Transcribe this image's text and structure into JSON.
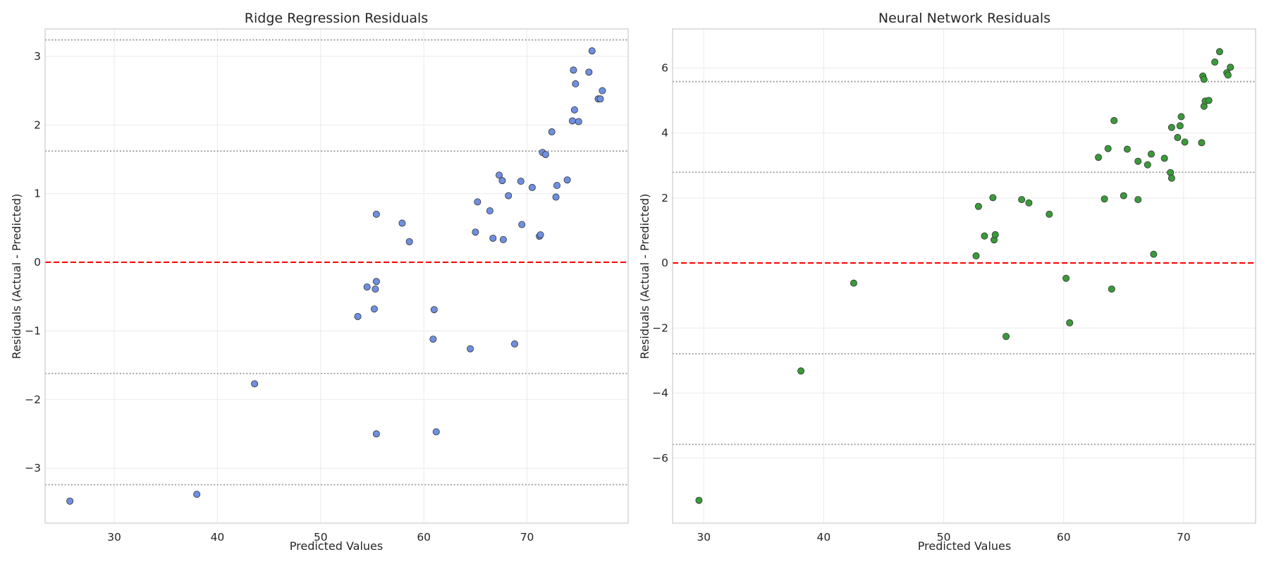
{
  "chart_data": [
    {
      "type": "scatter",
      "title": "Ridge Regression Residuals",
      "xlabel": "Predicted Values",
      "ylabel": "Residuals (Actual - Predicted)",
      "xlim": [
        23.3,
        79.8
      ],
      "ylim": [
        -3.8,
        3.4
      ],
      "xticks": [
        30,
        40,
        50,
        60,
        70
      ],
      "yticks": [
        -3,
        -2,
        -1,
        0,
        1,
        2,
        3
      ],
      "xtick_labels": [
        "30",
        "40",
        "50",
        "60",
        "70"
      ],
      "ytick_labels": [
        "−3",
        "−2",
        "−1",
        "0",
        "1",
        "2",
        "3"
      ],
      "grid": true,
      "point_color": "#6f8fe0",
      "zero_line": {
        "y": 0,
        "color": "#ff0000",
        "style": "dashed"
      },
      "reference_lines": [
        3.24,
        1.62,
        -1.62,
        -3.24
      ],
      "reference_line_color": "#999999",
      "points": [
        {
          "x": 25.7,
          "y": -3.48
        },
        {
          "x": 38.0,
          "y": -3.38
        },
        {
          "x": 43.6,
          "y": -1.77
        },
        {
          "x": 53.6,
          "y": -0.79
        },
        {
          "x": 54.5,
          "y": -0.36
        },
        {
          "x": 55.2,
          "y": -0.68
        },
        {
          "x": 55.3,
          "y": -0.39
        },
        {
          "x": 55.4,
          "y": 0.7
        },
        {
          "x": 55.4,
          "y": -0.28
        },
        {
          "x": 55.4,
          "y": -2.5
        },
        {
          "x": 57.9,
          "y": 0.57
        },
        {
          "x": 58.6,
          "y": 0.3
        },
        {
          "x": 60.9,
          "y": -1.12
        },
        {
          "x": 61.0,
          "y": -0.69
        },
        {
          "x": 61.2,
          "y": -2.47
        },
        {
          "x": 64.5,
          "y": -1.26
        },
        {
          "x": 65.0,
          "y": 0.44
        },
        {
          "x": 65.2,
          "y": 0.88
        },
        {
          "x": 66.4,
          "y": 0.75
        },
        {
          "x": 66.7,
          "y": 0.35
        },
        {
          "x": 67.3,
          "y": 1.27
        },
        {
          "x": 67.6,
          "y": 1.19
        },
        {
          "x": 67.7,
          "y": 0.33
        },
        {
          "x": 68.2,
          "y": 0.97
        },
        {
          "x": 68.8,
          "y": -1.19
        },
        {
          "x": 69.4,
          "y": 1.18
        },
        {
          "x": 69.5,
          "y": 0.55
        },
        {
          "x": 70.5,
          "y": 1.09
        },
        {
          "x": 71.2,
          "y": 0.38
        },
        {
          "x": 71.3,
          "y": 0.4
        },
        {
          "x": 71.5,
          "y": 1.6
        },
        {
          "x": 71.8,
          "y": 1.57
        },
        {
          "x": 72.4,
          "y": 1.9
        },
        {
          "x": 72.8,
          "y": 0.95
        },
        {
          "x": 72.9,
          "y": 1.12
        },
        {
          "x": 73.9,
          "y": 1.2
        },
        {
          "x": 74.4,
          "y": 2.06
        },
        {
          "x": 74.5,
          "y": 2.8
        },
        {
          "x": 74.6,
          "y": 2.22
        },
        {
          "x": 74.7,
          "y": 2.6
        },
        {
          "x": 75.0,
          "y": 2.05
        },
        {
          "x": 76.0,
          "y": 2.77
        },
        {
          "x": 76.3,
          "y": 3.08
        },
        {
          "x": 76.9,
          "y": 2.38
        },
        {
          "x": 77.1,
          "y": 2.38
        },
        {
          "x": 77.3,
          "y": 2.5
        }
      ]
    },
    {
      "type": "scatter",
      "title": "Neural Network Residuals",
      "xlabel": "Predicted Values",
      "ylabel": "Residuals (Actual - Predicted)",
      "xlim": [
        27.4,
        76.0
      ],
      "ylim": [
        -8.0,
        7.2
      ],
      "xticks": [
        30,
        40,
        50,
        60,
        70
      ],
      "yticks": [
        -6,
        -4,
        -2,
        0,
        2,
        4,
        6
      ],
      "xtick_labels": [
        "30",
        "40",
        "50",
        "60",
        "70"
      ],
      "ytick_labels": [
        "−6",
        "−4",
        "−2",
        "0",
        "2",
        "4",
        "6"
      ],
      "grid": true,
      "point_color": "#3a9a3a",
      "zero_line": {
        "y": 0,
        "color": "#ff0000",
        "style": "dashed"
      },
      "reference_lines": [
        5.58,
        2.79,
        -2.79,
        -5.58
      ],
      "reference_line_color": "#999999",
      "points": [
        {
          "x": 29.6,
          "y": -7.3
        },
        {
          "x": 38.1,
          "y": -3.32
        },
        {
          "x": 42.5,
          "y": -0.62
        },
        {
          "x": 52.7,
          "y": 0.22
        },
        {
          "x": 52.9,
          "y": 1.74
        },
        {
          "x": 53.4,
          "y": 0.83
        },
        {
          "x": 54.1,
          "y": 2.01
        },
        {
          "x": 54.2,
          "y": 0.71
        },
        {
          "x": 54.3,
          "y": 0.87
        },
        {
          "x": 55.2,
          "y": -2.26
        },
        {
          "x": 56.5,
          "y": 1.95
        },
        {
          "x": 57.1,
          "y": 1.85
        },
        {
          "x": 58.8,
          "y": 1.5
        },
        {
          "x": 60.2,
          "y": -0.47
        },
        {
          "x": 60.5,
          "y": -1.84
        },
        {
          "x": 62.9,
          "y": 3.25
        },
        {
          "x": 63.4,
          "y": 1.97
        },
        {
          "x": 63.7,
          "y": 3.52
        },
        {
          "x": 64.0,
          "y": -0.8
        },
        {
          "x": 64.2,
          "y": 4.38
        },
        {
          "x": 65.0,
          "y": 2.07
        },
        {
          "x": 65.3,
          "y": 3.5
        },
        {
          "x": 66.2,
          "y": 1.95
        },
        {
          "x": 66.2,
          "y": 3.13
        },
        {
          "x": 67.0,
          "y": 3.02
        },
        {
          "x": 67.3,
          "y": 3.35
        },
        {
          "x": 67.5,
          "y": 0.27
        },
        {
          "x": 68.4,
          "y": 3.22
        },
        {
          "x": 68.9,
          "y": 2.78
        },
        {
          "x": 69.0,
          "y": 2.61
        },
        {
          "x": 69.0,
          "y": 4.17
        },
        {
          "x": 69.5,
          "y": 3.86
        },
        {
          "x": 69.7,
          "y": 4.22
        },
        {
          "x": 69.8,
          "y": 4.5
        },
        {
          "x": 70.1,
          "y": 3.72
        },
        {
          "x": 71.5,
          "y": 3.7
        },
        {
          "x": 71.6,
          "y": 5.75
        },
        {
          "x": 71.7,
          "y": 5.65
        },
        {
          "x": 71.7,
          "y": 4.82
        },
        {
          "x": 71.8,
          "y": 4.98
        },
        {
          "x": 72.1,
          "y": 5.0
        },
        {
          "x": 72.6,
          "y": 6.18
        },
        {
          "x": 73.0,
          "y": 6.5
        },
        {
          "x": 73.6,
          "y": 5.85
        },
        {
          "x": 73.7,
          "y": 5.78
        },
        {
          "x": 73.9,
          "y": 6.02
        }
      ]
    }
  ]
}
